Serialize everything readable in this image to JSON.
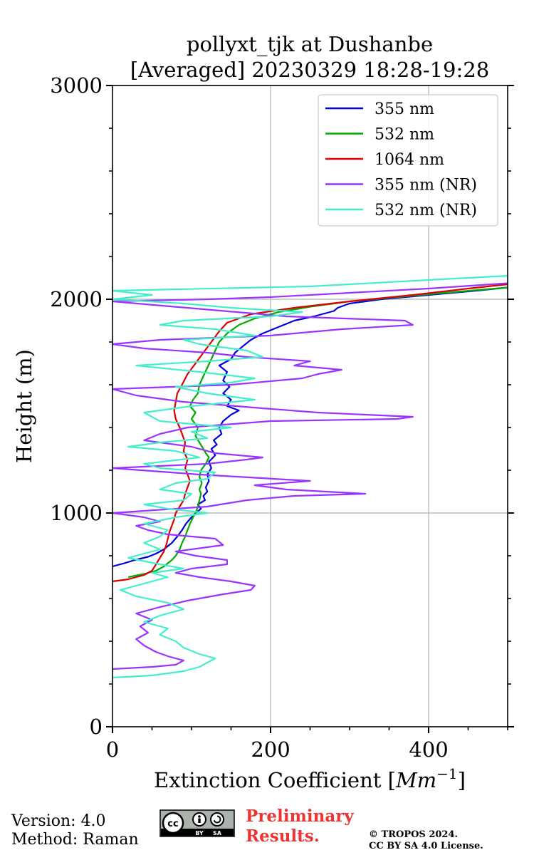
{
  "chart_data": {
    "type": "line",
    "title": [
      "pollyxt_tjk at Dushanbe",
      "[Averaged] 20230329 18:28-19:28"
    ],
    "xlabel": "Extinction Coefficient [",
    "xlabel_unit": "Mm",
    "xlabel_exp": "−1",
    "xlabel_close": "]",
    "ylabel": "Height (m)",
    "xlim": [
      0,
      500
    ],
    "ylim": [
      0,
      3000
    ],
    "xticks": [
      0,
      200,
      400
    ],
    "yticks": [
      0,
      1000,
      2000,
      3000
    ],
    "grid": true,
    "legend_position": "top-right",
    "series": [
      {
        "name": "355 nm",
        "color": "#0000dd",
        "points": [
          [
            0,
            750
          ],
          [
            15,
            765
          ],
          [
            28,
            780
          ],
          [
            45,
            795
          ],
          [
            55,
            810
          ],
          [
            65,
            830
          ],
          [
            75,
            860
          ],
          [
            82,
            890
          ],
          [
            88,
            920
          ],
          [
            93,
            950
          ],
          [
            100,
            980
          ],
          [
            105,
            1000
          ],
          [
            112,
            1020
          ],
          [
            108,
            1040
          ],
          [
            117,
            1060
          ],
          [
            115,
            1080
          ],
          [
            120,
            1100
          ],
          [
            118,
            1120
          ],
          [
            122,
            1150
          ],
          [
            120,
            1180
          ],
          [
            125,
            1210
          ],
          [
            122,
            1240
          ],
          [
            130,
            1270
          ],
          [
            125,
            1300
          ],
          [
            132,
            1320
          ],
          [
            128,
            1340
          ],
          [
            138,
            1370
          ],
          [
            135,
            1400
          ],
          [
            140,
            1430
          ],
          [
            150,
            1460
          ],
          [
            160,
            1480
          ],
          [
            145,
            1500
          ],
          [
            150,
            1530
          ],
          [
            140,
            1560
          ],
          [
            148,
            1590
          ],
          [
            140,
            1620
          ],
          [
            145,
            1660
          ],
          [
            135,
            1690
          ],
          [
            150,
            1720
          ],
          [
            155,
            1750
          ],
          [
            165,
            1780
          ],
          [
            175,
            1810
          ],
          [
            190,
            1840
          ],
          [
            210,
            1870
          ],
          [
            230,
            1900
          ],
          [
            255,
            1920
          ],
          [
            280,
            1945
          ],
          [
            285,
            1960
          ],
          [
            300,
            1980
          ],
          [
            340,
            2000
          ],
          [
            400,
            2020
          ],
          [
            460,
            2040
          ],
          [
            500,
            2055
          ]
        ]
      },
      {
        "name": "532 nm",
        "color": "#00aa00",
        "points": [
          [
            20,
            700
          ],
          [
            40,
            715
          ],
          [
            55,
            730
          ],
          [
            65,
            750
          ],
          [
            75,
            780
          ],
          [
            80,
            800
          ],
          [
            85,
            830
          ],
          [
            88,
            860
          ],
          [
            92,
            890
          ],
          [
            95,
            920
          ],
          [
            98,
            950
          ],
          [
            102,
            980
          ],
          [
            105,
            1000
          ],
          [
            108,
            1030
          ],
          [
            110,
            1060
          ],
          [
            112,
            1090
          ],
          [
            110,
            1110
          ],
          [
            113,
            1140
          ],
          [
            110,
            1170
          ],
          [
            112,
            1200
          ],
          [
            118,
            1230
          ],
          [
            122,
            1260
          ],
          [
            118,
            1280
          ],
          [
            115,
            1300
          ],
          [
            110,
            1330
          ],
          [
            105,
            1360
          ],
          [
            108,
            1400
          ],
          [
            100,
            1440
          ],
          [
            105,
            1470
          ],
          [
            98,
            1500
          ],
          [
            102,
            1530
          ],
          [
            108,
            1560
          ],
          [
            110,
            1600
          ],
          [
            115,
            1640
          ],
          [
            120,
            1680
          ],
          [
            125,
            1720
          ],
          [
            130,
            1760
          ],
          [
            135,
            1800
          ],
          [
            145,
            1840
          ],
          [
            160,
            1880
          ],
          [
            180,
            1910
          ],
          [
            210,
            1940
          ],
          [
            250,
            1965
          ],
          [
            300,
            1990
          ],
          [
            360,
            2010
          ],
          [
            420,
            2030
          ],
          [
            500,
            2055
          ]
        ]
      },
      {
        "name": "1064 nm",
        "color": "#dd0000",
        "points": [
          [
            0,
            680
          ],
          [
            20,
            690
          ],
          [
            40,
            710
          ],
          [
            50,
            730
          ],
          [
            55,
            760
          ],
          [
            60,
            790
          ],
          [
            65,
            820
          ],
          [
            68,
            850
          ],
          [
            70,
            880
          ],
          [
            72,
            910
          ],
          [
            75,
            940
          ],
          [
            78,
            970
          ],
          [
            80,
            1000
          ],
          [
            85,
            1030
          ],
          [
            90,
            1060
          ],
          [
            92,
            1090
          ],
          [
            95,
            1120
          ],
          [
            98,
            1150
          ],
          [
            95,
            1180
          ],
          [
            92,
            1210
          ],
          [
            95,
            1250
          ],
          [
            90,
            1290
          ],
          [
            92,
            1330
          ],
          [
            88,
            1370
          ],
          [
            85,
            1400
          ],
          [
            80,
            1440
          ],
          [
            78,
            1480
          ],
          [
            80,
            1520
          ],
          [
            82,
            1560
          ],
          [
            88,
            1600
          ],
          [
            95,
            1650
          ],
          [
            105,
            1700
          ],
          [
            115,
            1750
          ],
          [
            125,
            1800
          ],
          [
            135,
            1850
          ],
          [
            145,
            1890
          ],
          [
            175,
            1930
          ],
          [
            230,
            1960
          ],
          [
            300,
            1990
          ],
          [
            380,
            2020
          ],
          [
            450,
            2050
          ],
          [
            500,
            2070
          ]
        ]
      },
      {
        "name": "355 nm (NR)",
        "color": "#9933ff",
        "points": [
          [
            0,
            270
          ],
          [
            50,
            280
          ],
          [
            80,
            290
          ],
          [
            90,
            310
          ],
          [
            70,
            330
          ],
          [
            55,
            350
          ],
          [
            40,
            380
          ],
          [
            30,
            410
          ],
          [
            45,
            440
          ],
          [
            35,
            470
          ],
          [
            50,
            500
          ],
          [
            30,
            530
          ],
          [
            60,
            560
          ],
          [
            95,
            590
          ],
          [
            140,
            620
          ],
          [
            175,
            640
          ],
          [
            180,
            660
          ],
          [
            150,
            680
          ],
          [
            110,
            700
          ],
          [
            80,
            720
          ],
          [
            100,
            740
          ],
          [
            145,
            760
          ],
          [
            145,
            780
          ],
          [
            105,
            800
          ],
          [
            80,
            820
          ],
          [
            140,
            850
          ],
          [
            130,
            880
          ],
          [
            70,
            900
          ],
          [
            45,
            920
          ],
          [
            30,
            940
          ],
          [
            60,
            960
          ],
          [
            40,
            980
          ],
          [
            0,
            1000
          ],
          [
            120,
            1030
          ],
          [
            170,
            1060
          ],
          [
            230,
            1080
          ],
          [
            320,
            1090
          ],
          [
            220,
            1110
          ],
          [
            180,
            1130
          ],
          [
            250,
            1150
          ],
          [
            110,
            1180
          ],
          [
            0,
            1210
          ],
          [
            120,
            1230
          ],
          [
            170,
            1250
          ],
          [
            190,
            1260
          ],
          [
            130,
            1280
          ],
          [
            100,
            1310
          ],
          [
            40,
            1340
          ],
          [
            60,
            1370
          ],
          [
            95,
            1400
          ],
          [
            200,
            1430
          ],
          [
            360,
            1440
          ],
          [
            380,
            1450
          ],
          [
            260,
            1470
          ],
          [
            190,
            1490
          ],
          [
            90,
            1520
          ],
          [
            30,
            1550
          ],
          [
            0,
            1580
          ],
          [
            150,
            1600
          ],
          [
            240,
            1630
          ],
          [
            260,
            1650
          ],
          [
            290,
            1670
          ],
          [
            230,
            1690
          ],
          [
            250,
            1710
          ],
          [
            170,
            1730
          ],
          [
            120,
            1750
          ],
          [
            40,
            1770
          ],
          [
            0,
            1790
          ],
          [
            60,
            1810
          ],
          [
            200,
            1830
          ],
          [
            290,
            1860
          ],
          [
            380,
            1880
          ],
          [
            370,
            1900
          ],
          [
            220,
            1920
          ],
          [
            0,
            1990
          ],
          [
            120,
            2000
          ],
          [
            200,
            2010
          ],
          [
            300,
            2030
          ],
          [
            400,
            2050
          ],
          [
            500,
            2075
          ]
        ]
      },
      {
        "name": "532 nm (NR)",
        "color": "#44eecc",
        "points": [
          [
            0,
            230
          ],
          [
            50,
            240
          ],
          [
            90,
            260
          ],
          [
            110,
            280
          ],
          [
            120,
            300
          ],
          [
            130,
            320
          ],
          [
            110,
            340
          ],
          [
            90,
            370
          ],
          [
            80,
            400
          ],
          [
            60,
            430
          ],
          [
            70,
            460
          ],
          [
            40,
            490
          ],
          [
            60,
            520
          ],
          [
            90,
            550
          ],
          [
            70,
            580
          ],
          [
            30,
            610
          ],
          [
            10,
            640
          ],
          [
            40,
            670
          ],
          [
            70,
            700
          ],
          [
            50,
            720
          ],
          [
            90,
            740
          ],
          [
            60,
            760
          ],
          [
            20,
            790
          ],
          [
            40,
            810
          ],
          [
            60,
            830
          ],
          [
            40,
            860
          ],
          [
            60,
            890
          ],
          [
            70,
            920
          ],
          [
            40,
            950
          ],
          [
            80,
            980
          ],
          [
            120,
            1000
          ],
          [
            70,
            1020
          ],
          [
            40,
            1040
          ],
          [
            90,
            1060
          ],
          [
            100,
            1090
          ],
          [
            60,
            1110
          ],
          [
            80,
            1140
          ],
          [
            120,
            1160
          ],
          [
            130,
            1190
          ],
          [
            60,
            1210
          ],
          [
            40,
            1230
          ],
          [
            110,
            1260
          ],
          [
            80,
            1290
          ],
          [
            20,
            1310
          ],
          [
            60,
            1330
          ],
          [
            120,
            1350
          ],
          [
            100,
            1380
          ],
          [
            150,
            1400
          ],
          [
            60,
            1430
          ],
          [
            40,
            1470
          ],
          [
            100,
            1500
          ],
          [
            180,
            1530
          ],
          [
            120,
            1560
          ],
          [
            80,
            1590
          ],
          [
            150,
            1610
          ],
          [
            180,
            1630
          ],
          [
            110,
            1660
          ],
          [
            30,
            1690
          ],
          [
            120,
            1710
          ],
          [
            190,
            1730
          ],
          [
            170,
            1760
          ],
          [
            110,
            1790
          ],
          [
            90,
            1810
          ],
          [
            180,
            1830
          ],
          [
            130,
            1860
          ],
          [
            60,
            1880
          ],
          [
            90,
            1900
          ],
          [
            200,
            1920
          ],
          [
            240,
            1940
          ],
          [
            150,
            1960
          ],
          [
            90,
            1980
          ],
          [
            0,
            2000
          ],
          [
            50,
            2020
          ],
          [
            0,
            2040
          ],
          [
            250,
            2060
          ],
          [
            400,
            2090
          ],
          [
            500,
            2110
          ]
        ]
      }
    ]
  },
  "footer": {
    "version": "Version: 4.0",
    "method": "Method: Raman",
    "preliminary_line1": "Preliminary",
    "preliminary_line2": "Results.",
    "copyright_line1": "© TROPOS 2024.",
    "copyright_line2": "CC BY SA 4.0 License.",
    "cc_logo_text": "cc",
    "cc_by": "BY",
    "cc_sa": "SA"
  },
  "colors": {
    "grid": "#b0b0b0",
    "axis": "#000000",
    "preliminary": "#ee3333"
  }
}
